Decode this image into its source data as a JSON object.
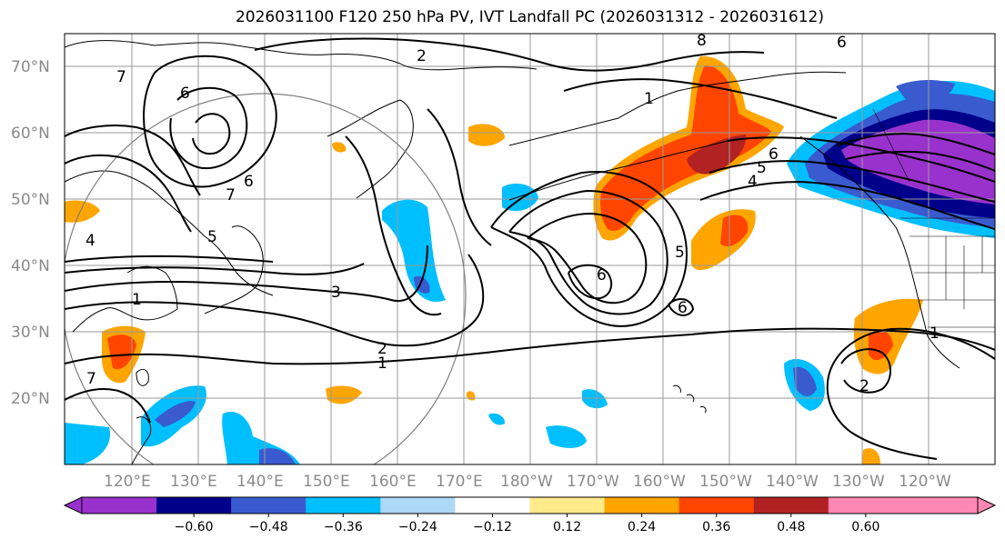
{
  "title": "2026031100 F120 250 hPa PV, IVT Landfall PC (2026031312 - 2026031612)",
  "latitude_labels": [
    "70°N",
    "60°N",
    "50°N",
    "40°N",
    "30°N",
    "20°N"
  ],
  "longitude_labels": [
    "120°E",
    "130°E",
    "140°E",
    "150°E",
    "160°E",
    "170°E",
    "180°W",
    "170°W",
    "160°W",
    "150°W",
    "140°W",
    "130°W",
    "120°W"
  ],
  "contour_labels": [
    "2",
    "6",
    "8",
    "6",
    "7",
    "6",
    "7",
    "5",
    "4",
    "3",
    "2",
    "1",
    "6",
    "6",
    "5",
    "4",
    "5",
    "6",
    "1",
    "2",
    "7",
    "1",
    "1"
  ],
  "colorbar": {
    "ticks": [
      "−0.60",
      "−0.48",
      "−0.36",
      "−0.24",
      "−0.12",
      "0.12",
      "0.24",
      "0.36",
      "0.48",
      "0.60"
    ],
    "colors": [
      "#9932cc",
      "#00008b",
      "#3a5bd0",
      "#00bfff",
      "#add8f6",
      "#ffffff",
      "#ffeb8a",
      "#ffa500",
      "#ff4500",
      "#b22222",
      "#ff87b4",
      "#ff87b4"
    ]
  },
  "shading_colors": {
    "neg_strong": "#9932cc",
    "neg_2": "#00008b",
    "neg_3": "#3a5bd0",
    "neg_4": "#00bfff",
    "pos_1": "#ffeb8a",
    "pos_2": "#ffa500",
    "pos_3": "#ff4500",
    "pos_4": "#b22222"
  }
}
